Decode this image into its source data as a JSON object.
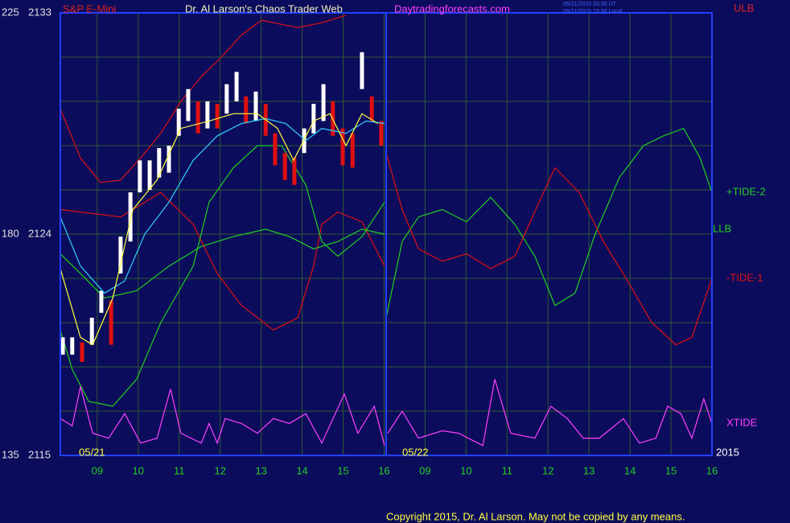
{
  "chart_data": {
    "type": "line",
    "title": "Dr. Al Larson's Chaos Trader Web",
    "instrument": "S&P E-Mini",
    "website": "Daytradingforecasts.com",
    "timestamps": [
      "05/21/2015 20:30 UT",
      "05/21/2015 15:30 Local"
    ],
    "dates": [
      "05/21",
      "05/22"
    ],
    "year": "2015",
    "copyright": "Copyright 2015, Dr. Al Larson. May not be copied by any means.",
    "annotations": [
      "ULB",
      "LLB"
    ],
    "xlim": [
      8.1,
      24
    ],
    "xticks": [
      {
        "value": 9,
        "label": "09"
      },
      10,
      11,
      12,
      13,
      14,
      15,
      16,
      {
        "value": 17,
        "label": "09"
      },
      {
        "value": 18,
        "label": "10"
      },
      {
        "value": 19,
        "label": "11"
      },
      {
        "value": 20,
        "label": "12"
      },
      {
        "value": 21,
        "label": "13"
      },
      {
        "value": 22,
        "label": "14"
      },
      {
        "value": 23,
        "label": "15"
      },
      {
        "value": 24,
        "label": "16"
      }
    ],
    "ylim": [
      2115,
      2133
    ],
    "yticks": [
      2115,
      2124,
      2133
    ],
    "y2lim": [
      135,
      225
    ],
    "y2ticks": [
      135,
      180,
      225
    ],
    "ygrid": [
      2116.8,
      2118.6,
      2120.4,
      2122.2,
      2124,
      2125.8,
      2127.6,
      2129.4,
      2131.2
    ],
    "grid": true,
    "series": [
      {
        "color": "#e01010",
        "x": [
          8.1,
          8.59,
          9.08,
          9.57,
          10.06,
          10.55,
          11.04,
          11.54,
          12.03,
          12.52,
          13.01,
          13.89,
          14.48,
          15.07
        ],
        "values": [
          2129.1,
          2127.1,
          2126.1,
          2126.2,
          2127.1,
          2128.1,
          2129.4,
          2130.4,
          2131.2,
          2132.1,
          2132.7,
          2132.4,
          2132.6,
          2132.9
        ]
      },
      {
        "color": "#e01010",
        "x": [
          8.1,
          8.59,
          9.57,
          10.55,
          11.34,
          11.93,
          12.52,
          13.3,
          13.89,
          14.28,
          14.48,
          14.87,
          15.46,
          16.01
        ],
        "values": [
          2125.0,
          2124.9,
          2124.7,
          2125.7,
          2124.4,
          2122.4,
          2121.1,
          2120.1,
          2120.6,
          2122.7,
          2124.4,
          2124.9,
          2124.5,
          2122.7
        ]
      },
      {
        "color": "#20d020",
        "x": [
          8.1,
          8.39,
          8.79,
          9.38,
          9.96,
          10.55,
          11.34,
          11.73,
          12.32,
          12.91,
          13.5,
          14.09,
          14.48,
          14.87,
          15.46,
          16.01
        ],
        "values": [
          2120.1,
          2118.5,
          2117.2,
          2117.0,
          2118.1,
          2120.4,
          2122.7,
          2125.3,
          2126.7,
          2127.6,
          2127.6,
          2126.0,
          2123.7,
          2123.1,
          2123.9,
          2125.3
        ]
      },
      {
        "color": "#20d020",
        "x": [
          8.1,
          8.59,
          9.18,
          9.96,
          10.75,
          11.54,
          12.32,
          13.11,
          13.69,
          14.28,
          14.87,
          15.46,
          16.01
        ],
        "values": [
          2123.2,
          2122.4,
          2121.4,
          2121.7,
          2122.7,
          2123.5,
          2123.9,
          2124.2,
          2123.9,
          2123.4,
          2123.7,
          2124.2,
          2124.0
        ]
      },
      {
        "color": "#ffffff",
        "down_color": "#e01010",
        "x": [
          8.16,
          8.39,
          8.63,
          8.87,
          9.1,
          9.34,
          9.57,
          9.81,
          10.04,
          10.28,
          10.51,
          10.75,
          10.99,
          11.22,
          11.46,
          11.69,
          11.93,
          12.16,
          12.4,
          12.63,
          12.87,
          13.11,
          13.34,
          13.58,
          13.81,
          14.05,
          14.28,
          14.52,
          14.75,
          14.99,
          15.23,
          15.46,
          15.7,
          15.93
        ],
        "high": [
          2119.8,
          2119.8,
          2119.6,
          2120.6,
          2121.7,
          2121.3,
          2123.9,
          2125.7,
          2127.0,
          2127.0,
          2127.5,
          2127.6,
          2129.1,
          2129.9,
          2129.4,
          2129.4,
          2129.3,
          2130.1,
          2130.6,
          2129.6,
          2129.8,
          2129.3,
          2128.1,
          2127.3,
          2127.1,
          2128.3,
          2129.3,
          2130.1,
          2129.4,
          2128.3,
          2128.1,
          2131.4,
          2129.6,
          2128.6
        ],
        "low": [
          2119.1,
          2119.1,
          2118.8,
          2119.5,
          2120.8,
          2119.5,
          2122.4,
          2123.7,
          2125.7,
          2125.8,
          2126.3,
          2126.5,
          2128.0,
          2128.6,
          2128.1,
          2128.3,
          2128.3,
          2128.9,
          2129.4,
          2128.5,
          2128.6,
          2128.0,
          2126.8,
          2126.2,
          2126.0,
          2127.3,
          2128.1,
          2128.6,
          2128.0,
          2126.8,
          2126.7,
          2129.9,
          2128.6,
          2127.6
        ]
      },
      {
        "color": "#30d0ff",
        "x": [
          8.1,
          8.59,
          9.18,
          9.67,
          10.16,
          10.75,
          11.34,
          11.93,
          12.52,
          13.11,
          13.6,
          14.09,
          14.48,
          15.07,
          15.56,
          16.01
        ],
        "values": [
          2124.7,
          2122.7,
          2121.6,
          2122.1,
          2124.0,
          2125.3,
          2127.0,
          2128.0,
          2128.5,
          2128.7,
          2128.5,
          2127.8,
          2128.3,
          2128.1,
          2128.6,
          2128.5
        ]
      },
      {
        "color": "#ffff40",
        "x": [
          8.1,
          8.59,
          8.89,
          9.38,
          9.87,
          10.46,
          11.04,
          11.73,
          12.32,
          12.91,
          13.4,
          13.79,
          14.28,
          14.68,
          15.07,
          15.46,
          15.85
        ],
        "values": [
          2122.6,
          2119.8,
          2119.5,
          2121.4,
          2125.0,
          2126.2,
          2128.3,
          2128.6,
          2128.9,
          2128.9,
          2128.3,
          2127.0,
          2128.6,
          2128.9,
          2127.6,
          2128.9,
          2128.5
        ]
      },
      {
        "name": "+TIDE-2",
        "color": "#20d020",
        "x": [
          16.05,
          16.44,
          16.84,
          17.42,
          18.01,
          18.6,
          19.19,
          19.68,
          20.17,
          20.66,
          21.15,
          21.74,
          22.33,
          22.82,
          23.31,
          23.71,
          24.0
        ],
        "values": [
          2120.6,
          2123.7,
          2124.7,
          2125.0,
          2124.5,
          2125.5,
          2124.4,
          2123.1,
          2121.1,
          2121.6,
          2124.0,
          2126.3,
          2127.6,
          2128.0,
          2128.3,
          2127.1,
          2125.7
        ]
      },
      {
        "name": "-TIDE-1",
        "color": "#e01010",
        "x": [
          16.05,
          16.44,
          16.84,
          17.42,
          18.01,
          18.6,
          19.19,
          19.78,
          20.17,
          20.76,
          21.35,
          21.94,
          22.53,
          23.12,
          23.51,
          24.0
        ],
        "values": [
          2127.3,
          2125.0,
          2123.4,
          2122.9,
          2123.2,
          2122.6,
          2123.1,
          2125.3,
          2126.7,
          2125.7,
          2123.7,
          2122.1,
          2120.4,
          2119.5,
          2119.8,
          2122.2
        ]
      },
      {
        "name": "XTIDE",
        "color": "#ff40ff",
        "x": [
          8.1,
          8.39,
          8.59,
          8.89,
          9.28,
          9.67,
          10.06,
          10.46,
          10.79,
          11.04,
          11.54,
          11.73,
          11.93,
          12.12,
          12.52,
          12.91,
          13.3,
          13.69,
          14.09,
          14.48,
          15.03,
          15.36,
          15.76,
          16.01,
          16.05,
          16.09,
          16.44,
          16.84,
          17.42,
          17.82,
          18.41,
          18.7,
          19.09,
          19.68,
          20.07,
          20.47,
          20.86,
          21.25,
          21.84,
          22.23,
          22.63,
          22.92,
          23.24,
          23.51,
          23.8,
          24.0
        ],
        "values": [
          2116.5,
          2116.2,
          2117.8,
          2115.9,
          2115.7,
          2116.7,
          2115.5,
          2115.7,
          2117.7,
          2115.9,
          2115.5,
          2116.3,
          2115.5,
          2116.5,
          2116.3,
          2115.9,
          2116.5,
          2116.3,
          2116.7,
          2115.5,
          2117.5,
          2115.9,
          2117.0,
          2115.4,
          null,
          2115.9,
          2116.8,
          2115.7,
          2116.0,
          2115.9,
          2115.4,
          2118.1,
          2115.9,
          2115.7,
          2117.0,
          2116.5,
          2115.7,
          2115.7,
          2116.5,
          2115.5,
          2115.7,
          2117.0,
          2116.7,
          2115.7,
          2117.3,
          2116.3
        ]
      }
    ]
  }
}
